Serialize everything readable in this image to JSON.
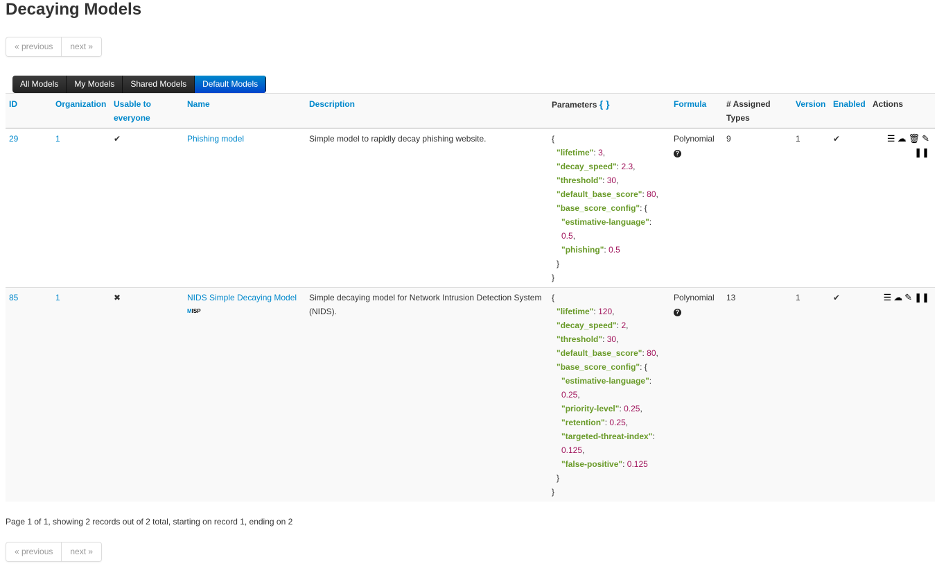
{
  "title": "Decaying Models",
  "pager": {
    "previous": "« previous",
    "next": "next »"
  },
  "tabs": [
    {
      "label": "All Models"
    },
    {
      "label": "My Models"
    },
    {
      "label": "Shared Models"
    },
    {
      "label": "Default Models",
      "active": true
    }
  ],
  "columns": {
    "id": "ID",
    "org": "Organization",
    "usable": "Usable to everyone",
    "name": "Name",
    "description": "Description",
    "parameters": "Parameters",
    "params_icon": "{ }",
    "formula": "Formula",
    "assigned": "# Assigned Types",
    "version": "Version",
    "enabled": "Enabled",
    "actions": "Actions"
  },
  "rows": [
    {
      "id": "29",
      "org": "1",
      "usable": "✔",
      "name": "Phishing model",
      "badge": "",
      "description": "Simple model to rapidly decay phishing website.",
      "formula": "Polynomial",
      "assigned": "9",
      "version": "1",
      "enabled": "✔",
      "params": [
        {
          "k": "lifetime",
          "v": "3"
        },
        {
          "k": "decay_speed",
          "v": "2.3"
        },
        {
          "k": "threshold",
          "v": "30"
        },
        {
          "k": "default_base_score",
          "v": "80"
        }
      ],
      "base_score_config": [
        {
          "k": "estimative-language",
          "v": "0.5"
        },
        {
          "k": "phishing",
          "v": "0.5"
        }
      ],
      "actions": [
        "list-icon",
        "cloud-download-icon",
        "trash-icon",
        "edit-icon",
        "pause-icon"
      ]
    },
    {
      "id": "85",
      "org": "1",
      "usable": "✖",
      "name": "NIDS Simple Decaying Model",
      "badge": "MISP",
      "description": "Simple decaying model for Network Intrusion Detection System (NIDS).",
      "formula": "Polynomial",
      "assigned": "13",
      "version": "1",
      "enabled": "✔",
      "params": [
        {
          "k": "lifetime",
          "v": "120"
        },
        {
          "k": "decay_speed",
          "v": "2"
        },
        {
          "k": "threshold",
          "v": "30"
        },
        {
          "k": "default_base_score",
          "v": "80"
        }
      ],
      "base_score_config": [
        {
          "k": "estimative-language",
          "v": "0.25"
        },
        {
          "k": "priority-level",
          "v": "0.25"
        },
        {
          "k": "retention",
          "v": "0.25"
        },
        {
          "k": "targeted-threat-index",
          "v": "0.125"
        },
        {
          "k": "false-positive",
          "v": "0.125"
        }
      ],
      "actions": [
        "list-icon",
        "cloud-download-icon",
        "edit-icon",
        "pause-icon"
      ]
    }
  ],
  "footer": "Page 1 of 1, showing 2 records out of 2 total, starting on record 1, ending on 2"
}
